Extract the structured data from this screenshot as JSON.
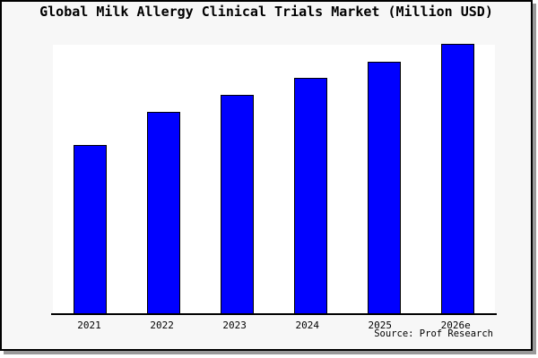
{
  "title": "Global Milk Allergy Clinical Trials Market (Million USD)",
  "source_note": "Source: Prof Research",
  "chart_data": {
    "type": "bar",
    "title": "Global Milk Allergy Clinical Trials Market (Million USD)",
    "categories": [
      "2021",
      "2022",
      "2023",
      "2024",
      "2025",
      "2026e"
    ],
    "values": [
      189,
      226,
      245,
      264,
      282,
      302
    ],
    "value_scale_note": "no y-axis or value labels shown in image; values are bar heights in pixels (relative magnitudes only)",
    "xlabel": "",
    "ylabel": "",
    "grid": false,
    "legend": false,
    "bar_count": 6
  },
  "colors": {
    "bar_fill": "#0000ff",
    "bar_border": "#000000",
    "figure_background": "#f7f7f7",
    "plot_background": "#ffffff",
    "frame_border": "#000000",
    "frame_shadow": "#999999",
    "text": "#000000"
  }
}
